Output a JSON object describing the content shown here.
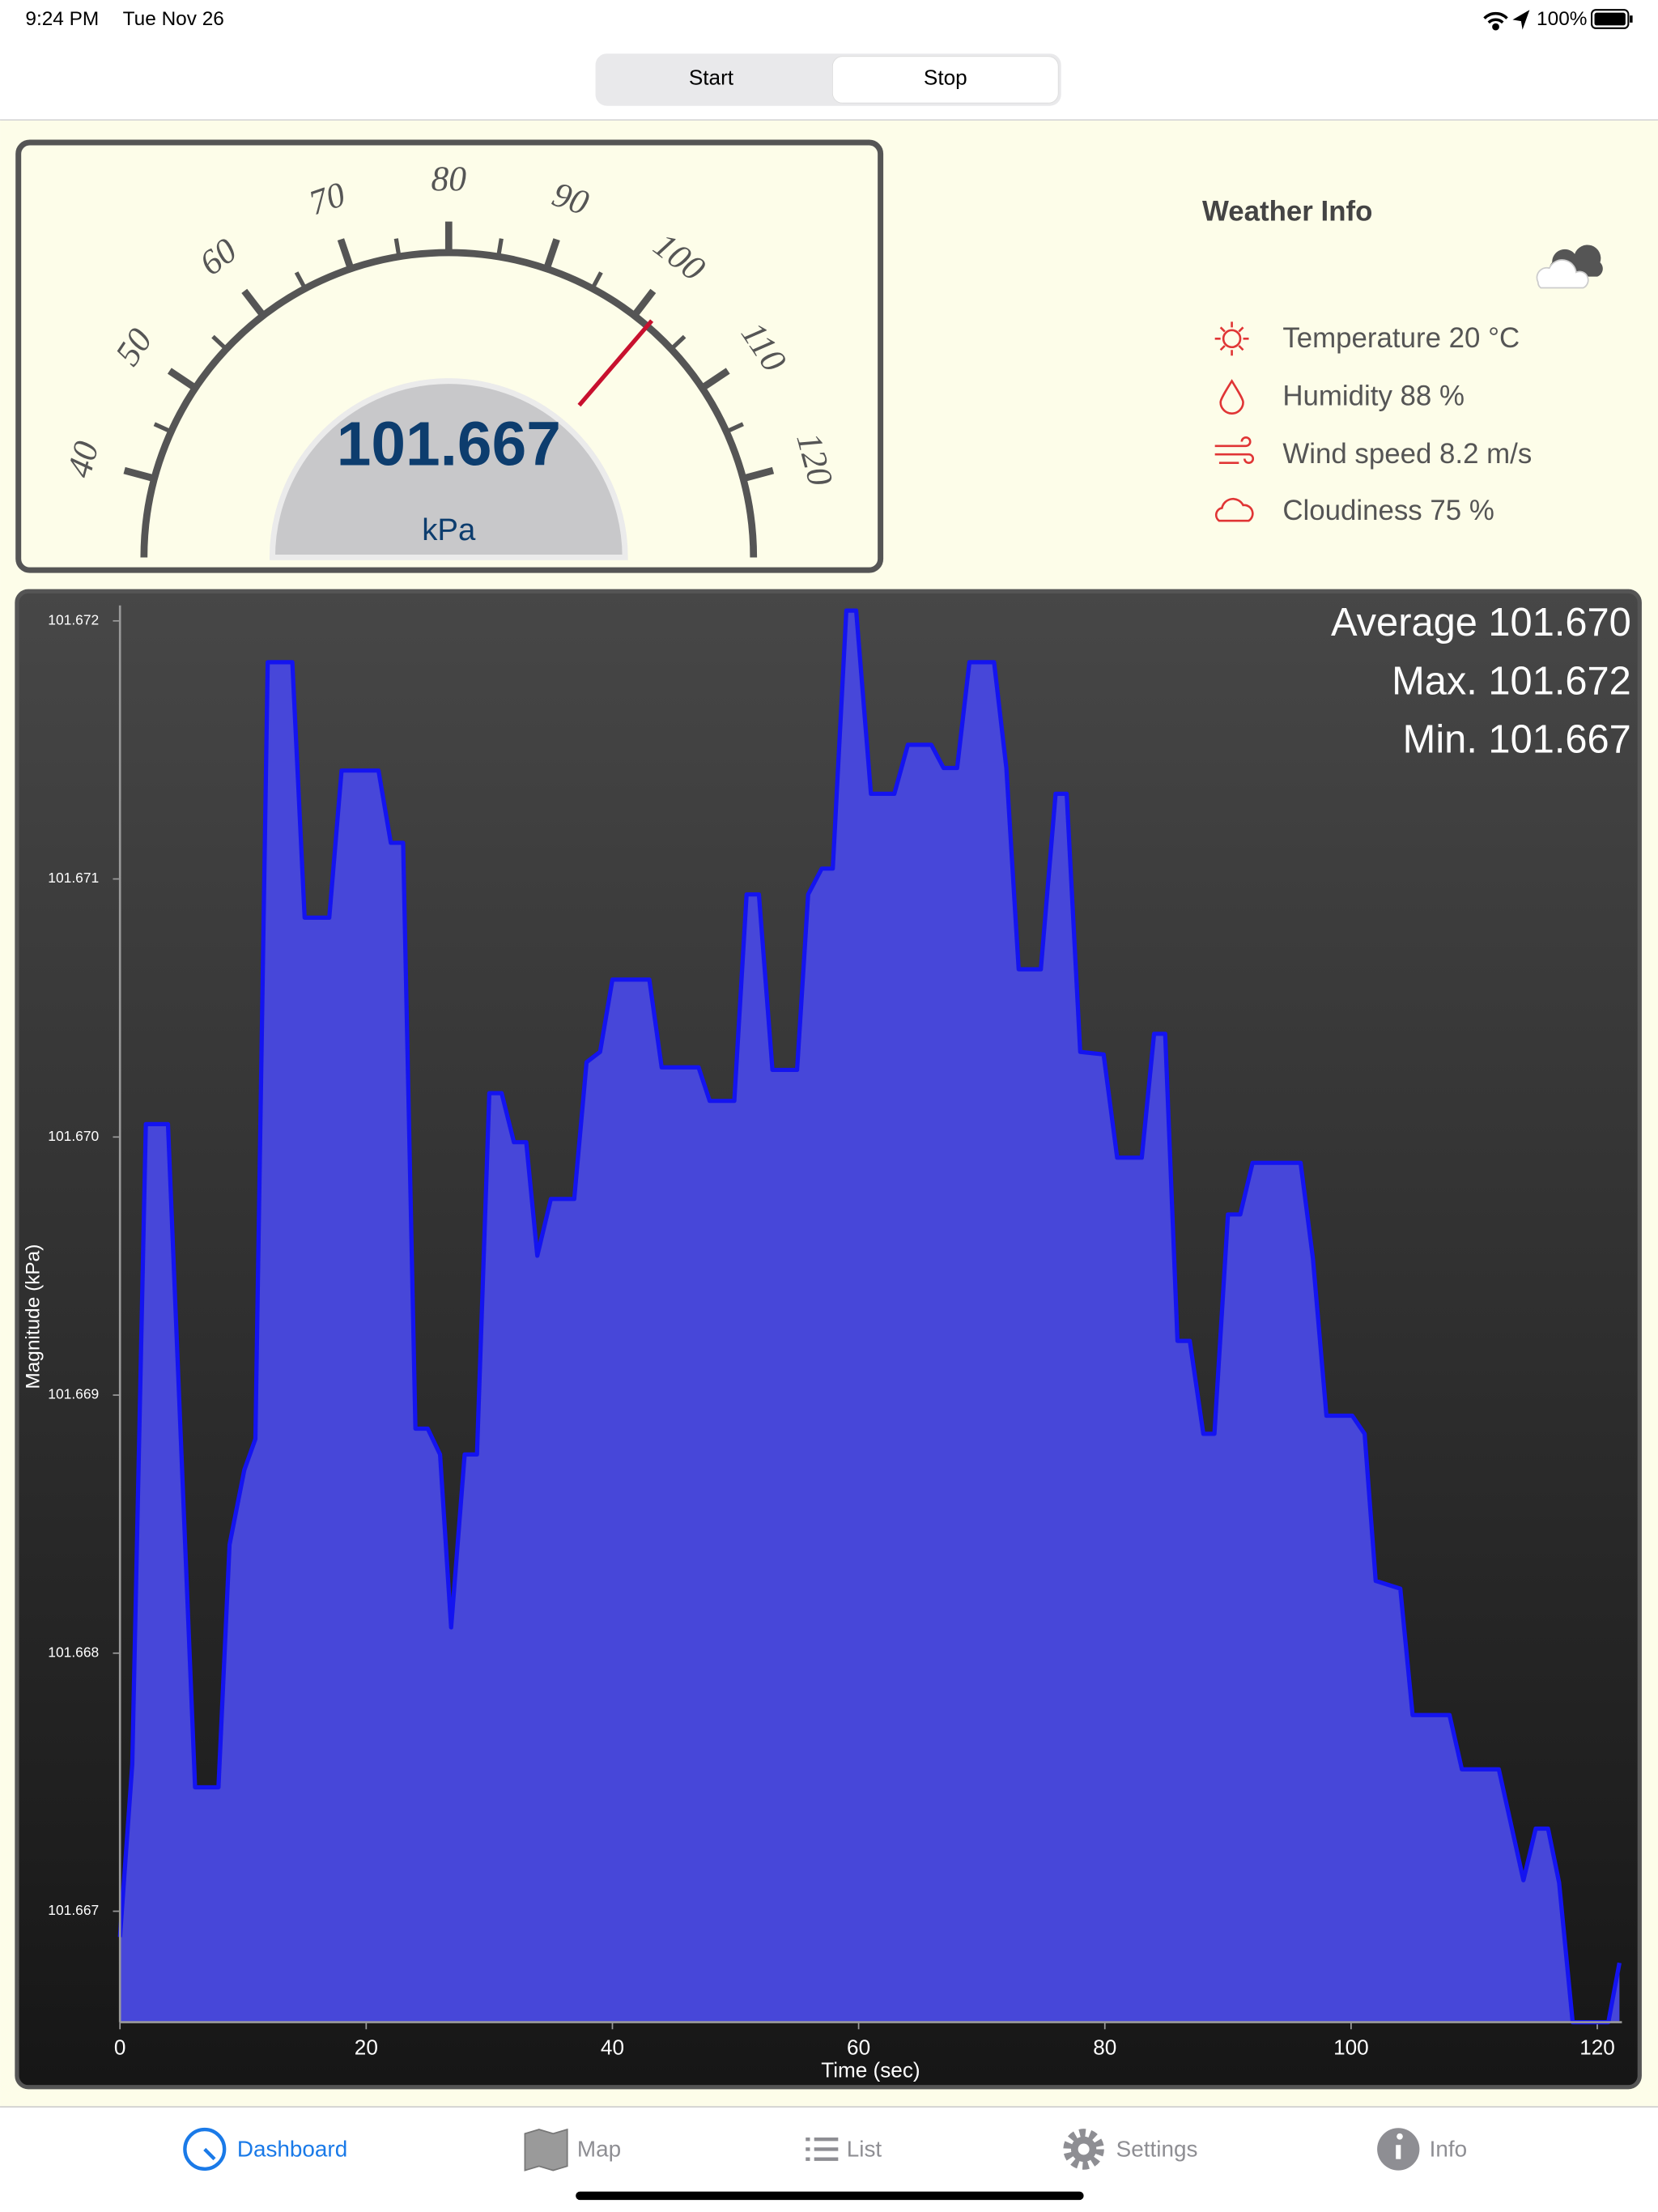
{
  "status_bar": {
    "time": "9:24 PM",
    "date": "Tue Nov 26",
    "battery": "100%"
  },
  "segmented_control": {
    "options": [
      "Start",
      "Stop"
    ]
  },
  "gauge": {
    "min": 40,
    "max": 120,
    "ticks": [
      40,
      50,
      60,
      70,
      80,
      90,
      100,
      110,
      120
    ],
    "value": 101.667,
    "unit": "kPa"
  },
  "weather": {
    "title": "Weather Info",
    "items": [
      "Temperature 20 °C",
      "Humidity 88 %",
      "Wind speed 8.2 m/s",
      "Cloudiness 75 %"
    ]
  },
  "chart_data": {
    "type": "area",
    "x_label": "Time (sec)",
    "y_label": "Magnitude (kPa)",
    "annotations": [
      "Average 101.670",
      "Max. 101.672",
      "Min. 101.667"
    ],
    "line_color": "#1414f0",
    "fill_color": "#4747d9",
    "x": [
      0,
      1,
      2.1,
      3.9,
      6.1,
      8,
      8.9,
      10.1,
      11,
      12,
      14,
      15,
      17,
      18,
      21,
      22,
      23,
      24,
      25,
      26,
      26.9,
      28,
      29,
      30,
      31,
      32,
      33,
      33.9,
      35,
      36.9,
      37.9,
      39,
      40,
      43,
      44,
      47,
      47.9,
      49.9,
      50.9,
      51.9,
      53,
      55,
      55.9,
      57,
      57.9,
      59,
      59.8,
      61,
      62.9,
      64,
      65.9,
      66.9,
      68,
      69,
      71,
      72,
      73,
      74.8,
      76,
      76.9,
      78,
      79.9,
      81,
      83,
      84,
      84.9,
      85.9,
      86.9,
      88,
      88.9,
      90,
      91,
      92,
      95.9,
      96.9,
      98,
      100.1,
      101.1,
      102,
      104,
      105,
      108,
      109,
      112,
      114,
      115,
      116,
      116.9,
      118,
      120.9,
      121.8
    ],
    "values": [
      101.6669,
      101.66757,
      101.67005,
      101.67005,
      101.66748,
      101.66748,
      101.66842,
      101.66871,
      101.66883,
      101.67184,
      101.67184,
      101.67085,
      101.67085,
      101.67142,
      101.67142,
      101.67114,
      101.67114,
      101.66887,
      101.66887,
      101.66877,
      101.6681,
      101.66877,
      101.66877,
      101.67017,
      101.67017,
      101.66998,
      101.66998,
      101.66954,
      101.66976,
      101.66976,
      101.67029,
      101.67033,
      101.67061,
      101.67061,
      101.67027,
      101.67027,
      101.67014,
      101.67014,
      101.67094,
      101.67094,
      101.67026,
      101.67026,
      101.67094,
      101.67104,
      101.67104,
      101.67204,
      101.67204,
      101.67133,
      101.67133,
      101.67152,
      101.67152,
      101.67143,
      101.67143,
      101.67184,
      101.67184,
      101.67143,
      101.67065,
      101.67065,
      101.67133,
      101.67133,
      101.67033,
      101.67032,
      101.66992,
      101.66992,
      101.6704,
      101.6704,
      101.66921,
      101.66921,
      101.66885,
      101.66885,
      101.6697,
      101.6697,
      101.6699,
      101.6699,
      101.66953,
      101.66892,
      101.66892,
      101.66885,
      101.66828,
      101.66825,
      101.66776,
      101.66776,
      101.66755,
      101.66755,
      101.66712,
      101.66732,
      101.66732,
      101.66711,
      101.66657,
      101.66657,
      101.6668
    ],
    "xlim": [
      0,
      122
    ],
    "ylim": [
      101.66657,
      101.67206
    ],
    "xticks": [
      0,
      20,
      40,
      60,
      80,
      100,
      120
    ],
    "yticks": [
      {
        "value": 101.667,
        "label": "101.667"
      },
      {
        "value": 101.668,
        "label": "101.668"
      },
      {
        "value": 101.669,
        "label": "101.669"
      },
      {
        "value": 101.67,
        "label": "101.670"
      },
      {
        "value": 101.671,
        "label": "101.671"
      },
      {
        "value": 101.672,
        "label": "101.672"
      }
    ]
  },
  "tab_bar": {
    "items": [
      "Dashboard",
      "Map",
      "List",
      "Settings",
      "Info"
    ]
  }
}
